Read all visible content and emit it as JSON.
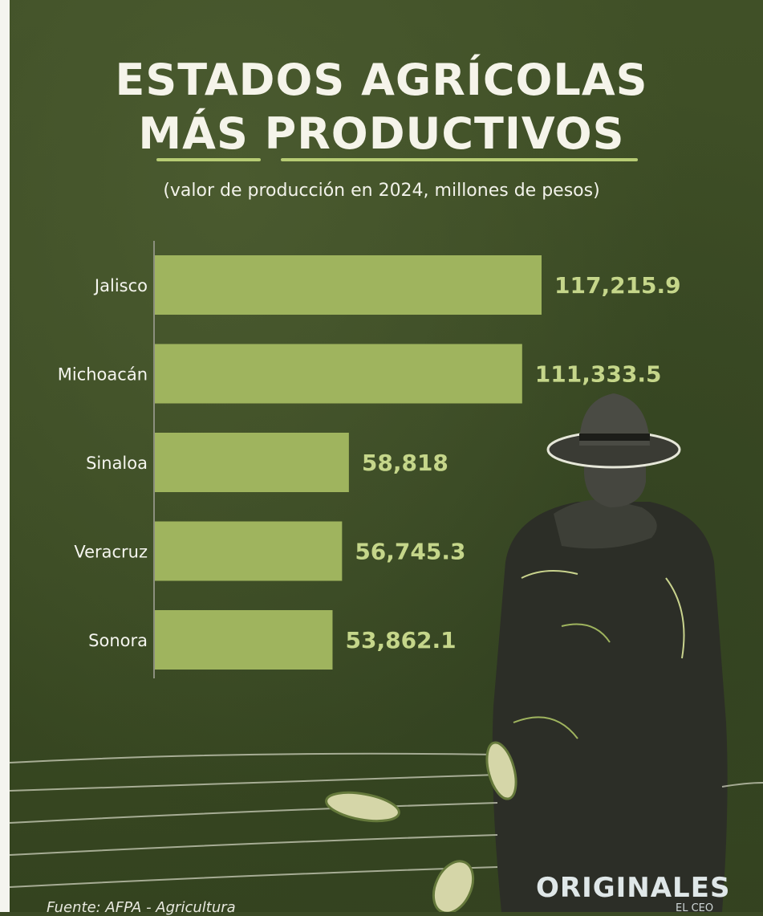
{
  "header": {
    "title_line1": "ESTADOS AGRÍCOLAS",
    "title_line2": "MÁS PRODUCTIVOS",
    "subtitle": "(valor de producción en 2024, millones de pesos)"
  },
  "chart_data": {
    "type": "bar",
    "orientation": "horizontal",
    "title": "ESTADOS AGRÍCOLAS MÁS PRODUCTIVOS",
    "subtitle": "(valor de producción en 2024, millones de pesos)",
    "categories": [
      "Jalisco",
      "Michoacán",
      "Sinaloa",
      "Veracruz",
      "Sonora"
    ],
    "values": [
      117215.9,
      111333.5,
      58818,
      56745.3,
      53862.1
    ],
    "value_labels": [
      "117,215.9",
      "111,333.5",
      "58,818",
      "56,745.3",
      "53,862.1"
    ],
    "grid": false,
    "legend": "none"
  },
  "footer": {
    "source": "Fuente: AFPA - Agricultura",
    "brand": "ORIGINALES",
    "brand_sub": "EL CEO"
  },
  "colors": {
    "background": "#3b4a25",
    "bar": "#9fb45e",
    "value_text": "#c5d68a",
    "title_text": "#f5f4ea",
    "accent_underline": "#b7cc74"
  }
}
